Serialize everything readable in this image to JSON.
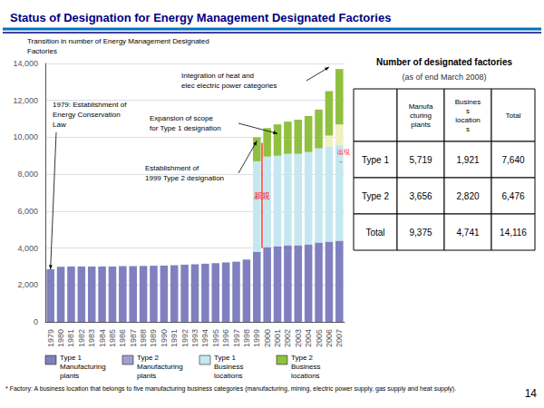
{
  "chart_data": {
    "type": "bar",
    "stacked": true,
    "title": "Status of Designation for Energy Management Designated Factories",
    "subtitle": "Transition in number of Energy Management Designated\nFactories",
    "categories": [
      "1979",
      "1980",
      "1981",
      "1982",
      "1983",
      "1984",
      "1985",
      "1986",
      "1987",
      "1988",
      "1989",
      "1990",
      "1991",
      "1992",
      "1993",
      "1994",
      "1995",
      "1996",
      "1997",
      "1998",
      "1999",
      "2000",
      "2001",
      "2002",
      "2003",
      "2004",
      "2005",
      "2006",
      "2007"
    ],
    "series": [
      {
        "color": "#8080C0",
        "values": [
          2850,
          2980,
          3000,
          3000,
          3000,
          3000,
          3000,
          3020,
          3020,
          3030,
          3040,
          3050,
          3070,
          3100,
          3120,
          3150,
          3180,
          3220,
          3260,
          3380,
          3800,
          4050,
          4100,
          4150,
          4150,
          4200,
          4300,
          4350,
          4400
        ]
      },
      {
        "color": "#C5E8F0",
        "values": [
          0,
          0,
          0,
          0,
          0,
          0,
          0,
          0,
          0,
          0,
          0,
          0,
          0,
          0,
          0,
          0,
          0,
          0,
          0,
          0,
          4900,
          4900,
          4900,
          4950,
          4950,
          5000,
          5100,
          5150,
          5200
        ]
      },
      {
        "color": "#F0F0C0",
        "values": [
          0,
          0,
          0,
          0,
          0,
          0,
          0,
          0,
          0,
          0,
          0,
          0,
          0,
          0,
          0,
          0,
          0,
          0,
          0,
          0,
          0,
          0,
          0,
          0,
          0,
          0,
          0,
          600,
          1100
        ]
      },
      {
        "color": "#90C040",
        "values": [
          0,
          0,
          0,
          0,
          0,
          0,
          0,
          0,
          0,
          0,
          0,
          0,
          0,
          0,
          0,
          0,
          0,
          0,
          0,
          0,
          1300,
          1550,
          1700,
          1750,
          1850,
          1950,
          2100,
          2400,
          3000
        ]
      }
    ],
    "ylim": [
      0,
      14000
    ],
    "yticks": [
      0,
      {
        "value": 2000,
        "label": "2,000"
      },
      {
        "value": 4000,
        "label": "4,000"
      },
      {
        "value": 6000,
        "label": "6,000"
      },
      {
        "value": 8000,
        "label": "8,000"
      },
      {
        "value": 10000,
        "label": "10,000"
      },
      {
        "value": 12000,
        "label": "12,000"
      },
      {
        "value": 14000,
        "label": "14,000"
      }
    ],
    "grid": true,
    "annotations": [
      {
        "text": "1979: Establishment of\nEnergy Conservation\nLaw",
        "x": "1979",
        "y": 2850
      },
      {
        "text": "Establishment of\n1999 Type 2 designation",
        "x": "1999",
        "y": 9800
      },
      {
        "text": "Expansion of scope\nfor Type 1 designation",
        "x": "2001",
        "y": 10200
      },
      {
        "text": "Integration of heat and\nelec electric power categories",
        "x": "2006",
        "y": 13800
      },
      {
        "text": "新規",
        "color": "red",
        "x": "1999",
        "span": [
          4000,
          9700
        ]
      },
      {
        "text": "出現",
        "color": "red",
        "x": "2007",
        "y": 9200
      },
      {
        "text": "→",
        "color": "red",
        "x": "2007",
        "y": 8700
      }
    ],
    "legend_entries": [
      {
        "label": "Type 1\nManufacturing\nplants",
        "color": "#8080C0"
      },
      {
        "label": "Type 2\nManufacturing\nplants",
        "color": "#A0A0D0"
      },
      {
        "label": "Type 1\nBusiness\nlocations",
        "color": "#C5E8F0"
      },
      {
        "label": "Type 2\nBusiness\nlocations",
        "color": "#90C040"
      }
    ],
    "table": {
      "title": "Number of designated factories",
      "subtitle": "(as of end March 2008)",
      "headers": [
        null,
        "Manufa\ncturing\nplants",
        "Busines\ns\nlocation\ns",
        "Total"
      ],
      "rows": [
        [
          "Type 1",
          "5,719",
          "1,921",
          "7,640"
        ],
        [
          "Type 2",
          "3,656",
          "2,820",
          "6,476"
        ],
        [
          "Total",
          "9,375",
          "4,741",
          "14,116"
        ]
      ]
    },
    "footnote": "* Factory: A business location that belongs to five manufacturing business categories (manufacturing, mining, electric power supply, gas supply and heat supply).",
    "page_number": "14"
  }
}
